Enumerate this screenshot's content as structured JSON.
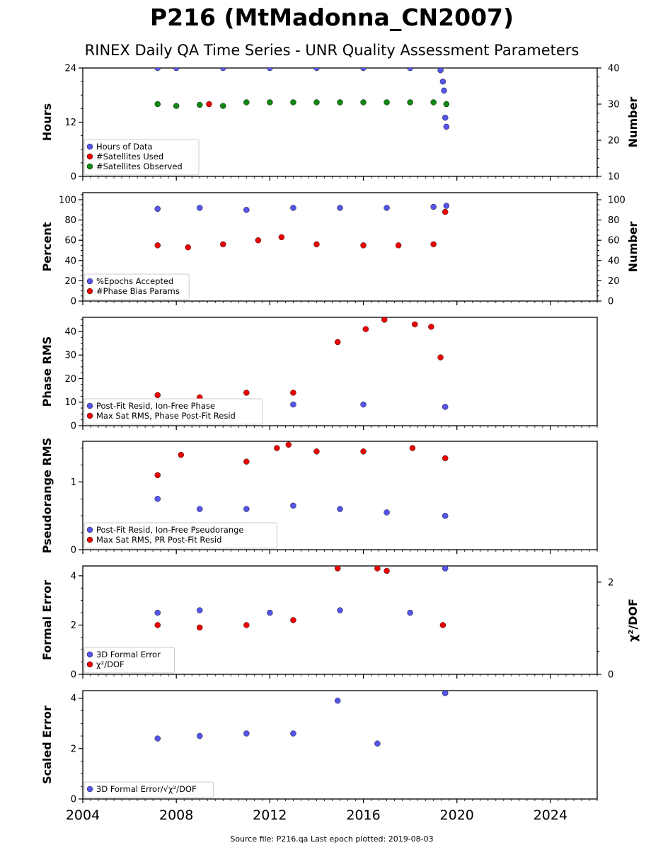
{
  "header": {
    "title": "P216 (MtMadonna_CN2007)",
    "subtitle": "RINEX Daily QA Time Series - UNR Quality Assessment Parameters",
    "source_prefix": "Source file: P216.qa",
    "last_epoch_label": "Last epoch plotted:",
    "last_epoch_value": "2019-08-03"
  },
  "colors": {
    "blue": "#5555ee",
    "red": "#ee0000",
    "green": "#118811",
    "edge": "#1a1a1a"
  },
  "chart_data": [
    {
      "type": "scatter",
      "ylabel": "Hours",
      "ylabel_right": "Number",
      "ylim": [
        0,
        24
      ],
      "yticks": [
        0,
        12,
        24
      ],
      "ylim_right": [
        10,
        40
      ],
      "yticks_right": [
        10,
        20,
        30,
        40
      ],
      "legend_loc": "lower-left",
      "series": [
        {
          "name": "Hours of Data",
          "color": "blue",
          "axis": "left",
          "x": [
            2007.2,
            2008.0,
            2010.0,
            2012.0,
            2014.0,
            2016.0,
            2018.0,
            2019.3,
            2019.4,
            2019.45,
            2019.5,
            2019.55
          ],
          "y": [
            24,
            24,
            24,
            24,
            24,
            24,
            24,
            23.5,
            21,
            19,
            13,
            11
          ]
        },
        {
          "name": "#Satellites Used",
          "color": "red",
          "axis": "left",
          "x": [
            2009.4
          ],
          "y": [
            16
          ]
        },
        {
          "name": "#Satellites Observed",
          "color": "green",
          "axis": "right",
          "x": [
            2007.2,
            2008.0,
            2009.0,
            2010.0,
            2011.0,
            2012.0,
            2013.0,
            2014.0,
            2015.0,
            2016.0,
            2017.0,
            2018.0,
            2019.0,
            2019.55
          ],
          "y": [
            30,
            29.5,
            29.8,
            29.5,
            30.5,
            30.5,
            30.5,
            30.5,
            30.5,
            30.5,
            30.5,
            30.5,
            30.5,
            30
          ]
        }
      ]
    },
    {
      "type": "scatter",
      "ylabel": "Percent",
      "ylabel_right": "Number",
      "ylim": [
        0,
        107
      ],
      "yticks": [
        0,
        20,
        40,
        60,
        80,
        100
      ],
      "ylim_right": [
        0,
        107
      ],
      "yticks_right": [
        0,
        20,
        40,
        60,
        80,
        100
      ],
      "legend_loc": "lower-left",
      "series": [
        {
          "name": "%Epochs Accepted",
          "color": "blue",
          "axis": "left",
          "x": [
            2007.2,
            2009.0,
            2011.0,
            2013.0,
            2015.0,
            2017.0,
            2019.0,
            2019.55
          ],
          "y": [
            91,
            92,
            90,
            92,
            92,
            92,
            93,
            94
          ]
        },
        {
          "name": "#Phase Bias Params",
          "color": "red",
          "axis": "left",
          "x": [
            2007.2,
            2008.5,
            2010.0,
            2011.5,
            2012.5,
            2014.0,
            2016.0,
            2017.5,
            2019.0,
            2019.5
          ],
          "y": [
            55,
            53,
            56,
            60,
            63,
            56,
            55,
            55,
            56,
            88
          ]
        }
      ]
    },
    {
      "type": "scatter",
      "ylabel": "Phase RMS",
      "ylim": [
        0,
        46
      ],
      "yticks": [
        0,
        10,
        20,
        30,
        40
      ],
      "legend_loc": "lower-left",
      "series": [
        {
          "name": "Post-Fit Resid, Ion-Free Phase",
          "color": "blue",
          "axis": "left",
          "x": [
            2007.2,
            2010.0,
            2013.0,
            2016.0,
            2019.5
          ],
          "y": [
            9,
            9,
            9,
            9,
            8
          ]
        },
        {
          "name": "Max Sat RMS, Phase Post-Fit Resid",
          "color": "red",
          "axis": "left",
          "x": [
            2007.2,
            2009.0,
            2011.0,
            2013.0,
            2014.9,
            2016.1,
            2016.9,
            2018.2,
            2018.9,
            2019.3
          ],
          "y": [
            13,
            12,
            14,
            14,
            35.5,
            41,
            45,
            43,
            42,
            29
          ]
        }
      ]
    },
    {
      "type": "scatter",
      "ylabel": "Pseudorange RMS",
      "ylim": [
        0,
        1.6
      ],
      "yticks": [
        0,
        1
      ],
      "legend_loc": "lower-left",
      "series": [
        {
          "name": "Post-Fit Resid, Ion-Free Pseudorange",
          "color": "blue",
          "axis": "left",
          "x": [
            2007.2,
            2009.0,
            2011.0,
            2013.0,
            2015.0,
            2017.0,
            2019.5
          ],
          "y": [
            0.75,
            0.6,
            0.6,
            0.65,
            0.6,
            0.55,
            0.5
          ]
        },
        {
          "name": "Max Sat RMS, PR Post-Fit Resid",
          "color": "red",
          "axis": "left",
          "x": [
            2007.2,
            2008.2,
            2011.0,
            2012.3,
            2012.8,
            2014.0,
            2016.0,
            2018.1,
            2019.5
          ],
          "y": [
            1.1,
            1.4,
            1.3,
            1.5,
            1.55,
            1.45,
            1.45,
            1.5,
            1.35
          ]
        }
      ]
    },
    {
      "type": "scatter",
      "ylabel": "Formal Error",
      "ylabel_right": "χ²/DOF",
      "ylim": [
        0,
        4.4
      ],
      "yticks": [
        0,
        2,
        4
      ],
      "ylim_right": [
        0,
        2.35
      ],
      "yticks_right": [
        0,
        2
      ],
      "legend_loc": "lower-left",
      "series": [
        {
          "name": "3D Formal Error",
          "color": "blue",
          "axis": "left",
          "x": [
            2007.2,
            2009.0,
            2012.0,
            2015.0,
            2018.0,
            2019.5
          ],
          "y": [
            2.5,
            2.6,
            2.5,
            2.6,
            2.5,
            4.3
          ]
        },
        {
          "name": "χ²/DOF",
          "color": "red",
          "axis": "left",
          "x": [
            2007.2,
            2009.0,
            2011.0,
            2013.0,
            2014.9,
            2016.6,
            2017.0,
            2019.4
          ],
          "y": [
            2.0,
            1.9,
            2.0,
            2.2,
            4.3,
            4.3,
            4.2,
            2.0
          ]
        }
      ]
    },
    {
      "type": "scatter",
      "ylabel": "Scaled Error",
      "ylim": [
        0,
        4.3
      ],
      "yticks": [
        0,
        2,
        4
      ],
      "legend_loc": "lower-left",
      "series": [
        {
          "name": "3D Formal Error/√χ²/DOF",
          "color": "blue",
          "axis": "left",
          "x": [
            2007.2,
            2009.0,
            2011.0,
            2013.0,
            2014.9,
            2016.6,
            2019.5
          ],
          "y": [
            2.4,
            2.5,
            2.6,
            2.6,
            3.9,
            2.2,
            4.2
          ]
        }
      ]
    }
  ],
  "xaxis": {
    "xlim": [
      2004,
      2026
    ],
    "ticks": [
      2004,
      2008,
      2012,
      2016,
      2020,
      2024
    ],
    "tick_labels": [
      "2004",
      "2008",
      "2012",
      "2016",
      "2020",
      "2024"
    ]
  }
}
